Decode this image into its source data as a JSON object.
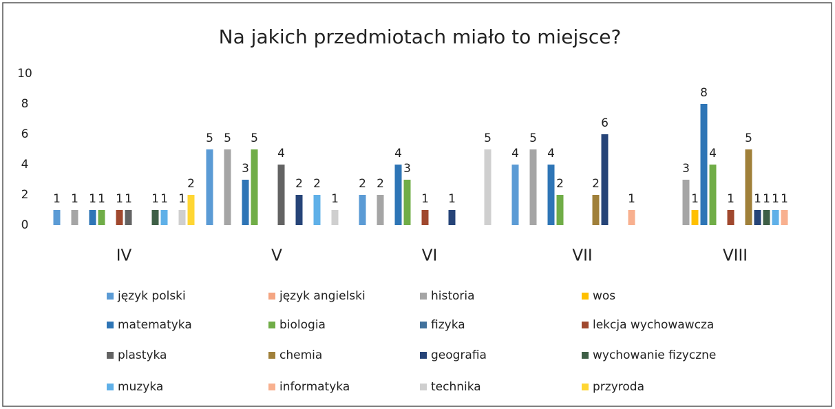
{
  "chart_data": {
    "type": "bar",
    "title": "Na jakich przedmiotach miało to miejsce?",
    "categories": [
      "IV",
      "V",
      "VI",
      "VII",
      "VIII"
    ],
    "series": [
      {
        "name": "język polski",
        "color": "#5b9bd5",
        "values": [
          1,
          5,
          2,
          4,
          null
        ]
      },
      {
        "name": "język angielski",
        "color": "#f4a582",
        "values": [
          null,
          null,
          null,
          null,
          null
        ]
      },
      {
        "name": "historia",
        "color": "#a5a5a5",
        "values": [
          1,
          5,
          2,
          5,
          3
        ]
      },
      {
        "name": "wos",
        "color": "#ffc000",
        "values": [
          null,
          null,
          null,
          null,
          1
        ]
      },
      {
        "name": "matematyka",
        "color": "#2e75b6",
        "values": [
          1,
          3,
          4,
          4,
          8
        ]
      },
      {
        "name": "biologia",
        "color": "#70ad47",
        "values": [
          1,
          5,
          3,
          2,
          4
        ]
      },
      {
        "name": "fizyka",
        "color": "#41719c",
        "values": [
          null,
          null,
          null,
          null,
          null
        ]
      },
      {
        "name": "lekcja wychowawcza",
        "color": "#a0482e",
        "values": [
          1,
          null,
          1,
          null,
          1
        ]
      },
      {
        "name": "plastyka",
        "color": "#636363",
        "values": [
          1,
          4,
          null,
          null,
          null
        ]
      },
      {
        "name": "chemia",
        "color": "#a0803a",
        "values": [
          null,
          null,
          null,
          2,
          5
        ]
      },
      {
        "name": "geografia",
        "color": "#264478",
        "values": [
          null,
          2,
          1,
          6,
          1
        ]
      },
      {
        "name": "wychowanie fizyczne",
        "color": "#3e5f46",
        "values": [
          1,
          null,
          null,
          null,
          1
        ]
      },
      {
        "name": "muzyka",
        "color": "#5fb0e8",
        "values": [
          1,
          2,
          null,
          null,
          1
        ]
      },
      {
        "name": "informatyka",
        "color": "#f8b08f",
        "values": [
          null,
          null,
          null,
          1,
          1
        ]
      },
      {
        "name": "technika",
        "color": "#cfcfcf",
        "values": [
          1,
          1,
          5,
          null,
          null
        ]
      },
      {
        "name": "przyroda",
        "color": "#ffd633",
        "values": [
          2,
          null,
          null,
          null,
          null
        ]
      }
    ],
    "ylim": [
      0,
      10
    ],
    "yticks": [
      0,
      2,
      4,
      6,
      8,
      10
    ],
    "grid": false,
    "legend": "bottom"
  }
}
